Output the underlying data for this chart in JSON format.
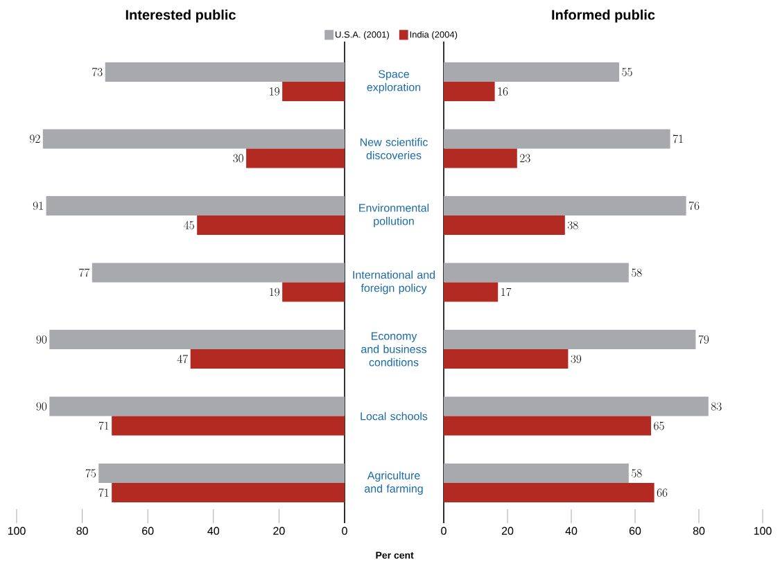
{
  "chart_data": [
    {
      "type": "bar",
      "orientation": "horizontal",
      "title": "Interested public",
      "categories": [
        null,
        null,
        null,
        null,
        null,
        null,
        null
      ],
      "series": [
        {
          "name": "U.S.A. (2001)",
          "color": "#a7a9ac",
          "values": [
            73,
            92,
            91,
            77,
            90,
            90,
            75
          ]
        },
        {
          "name": "India (2004)",
          "color": "#b22a22",
          "values": [
            19,
            30,
            45,
            19,
            47,
            71,
            71
          ]
        }
      ],
      "xlim": [
        100,
        0
      ],
      "xticks": [
        100,
        80,
        60,
        40,
        20,
        0
      ],
      "data_labels": true,
      "legend": "top right",
      "tick_labels": "x"
    },
    {
      "type": "bar",
      "orientation": "horizontal",
      "title": "Informed public",
      "xlabel": "Per cent",
      "categories": [
        "Space exploration",
        "New scientific discoveries",
        "Environmental pollution",
        "International and foreign policy",
        "Economy and business conditions",
        "Local schools",
        "Agriculture and farming"
      ],
      "series": [
        {
          "color": "#a7a9ac",
          "values": [
            55,
            71,
            76,
            58,
            79,
            83,
            58
          ]
        },
        {
          "color": "#b22a22",
          "values": [
            16,
            23,
            38,
            17,
            39,
            65,
            66
          ]
        }
      ],
      "xlim": [
        0,
        100
      ],
      "xticks": [
        0,
        20,
        40,
        60,
        80,
        100
      ],
      "data_labels": true
    }
  ]
}
